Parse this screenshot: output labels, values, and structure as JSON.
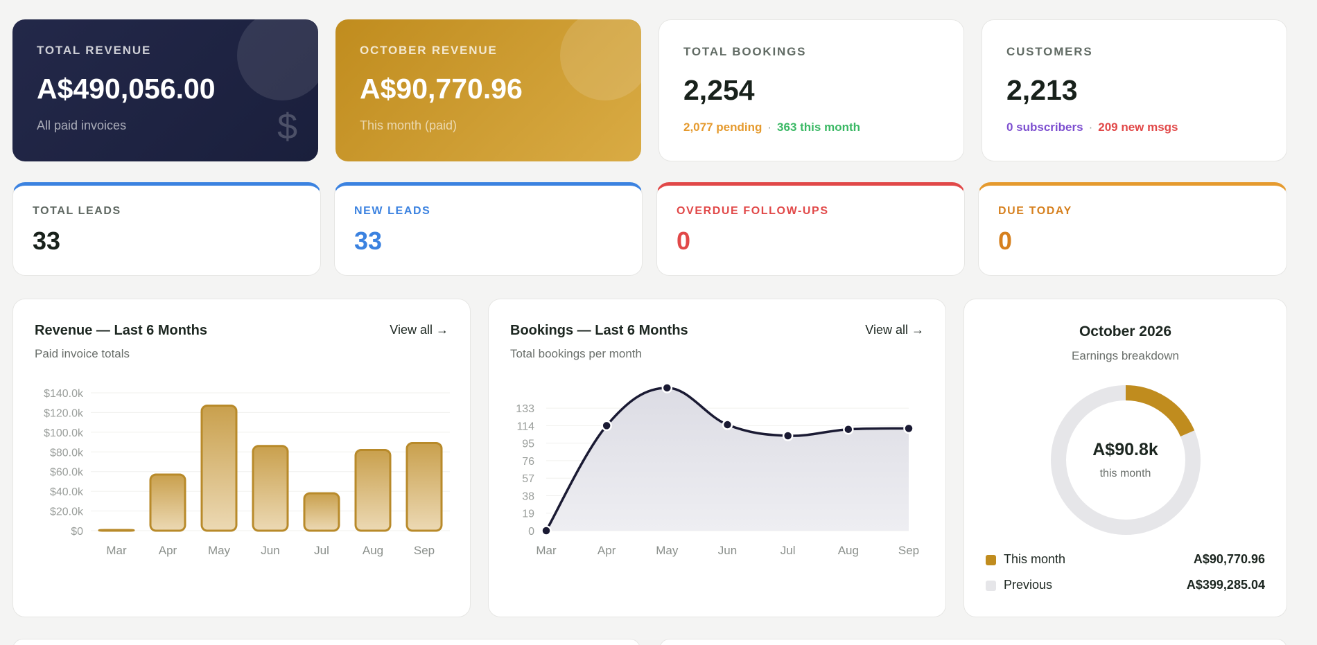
{
  "colors": {
    "navy": "#232849",
    "gold": "#c08c1e",
    "blue": "#3b82e0",
    "red": "#e14848",
    "orange": "#e59a2e",
    "orange_text": "#d6801e",
    "green": "#3ab864",
    "purple": "#7d4fd0",
    "bar_stroke": "#b88a2a",
    "bar_fill_top": "#c9a04d",
    "bar_fill_bottom": "#ecd9b4",
    "line": "#1a1a33",
    "donut_previous": "#e6e6e9"
  },
  "stats": {
    "total_revenue": {
      "label": "TOTAL REVENUE",
      "value": "A$490,056.00",
      "sub": "All paid invoices",
      "icon": "dollar-icon"
    },
    "october_revenue": {
      "label": "OCTOBER REVENUE",
      "value": "A$90,770.96",
      "sub": "This month (paid)"
    },
    "total_bookings": {
      "label": "TOTAL BOOKINGS",
      "value": "2,254",
      "pending": "2,077 pending",
      "this_month": "363 this month"
    },
    "customers": {
      "label": "CUSTOMERS",
      "value": "2,213",
      "subscribers": "0 subscribers",
      "new_msgs": "209 new msgs"
    }
  },
  "separator": "·",
  "leads": {
    "total": {
      "label": "TOTAL LEADS",
      "value": "33"
    },
    "new": {
      "label": "NEW LEADS",
      "value": "33"
    },
    "overdue": {
      "label": "OVERDUE FOLLOW-UPS",
      "value": "0"
    },
    "due_today": {
      "label": "DUE TODAY",
      "value": "0"
    }
  },
  "revenue_chart": {
    "title": "Revenue — Last 6 Months",
    "subtitle": "Paid invoice totals",
    "view_all": "View all →"
  },
  "bookings_chart": {
    "title": "Bookings — Last 6 Months",
    "subtitle": "Total bookings per month",
    "view_all": "View all →"
  },
  "donut": {
    "title": "October 2026",
    "subtitle": "Earnings breakdown",
    "center_value": "A$90.8k",
    "center_label": "this month",
    "legend": [
      {
        "label": "This month",
        "value": "A$90,770.96"
      },
      {
        "label": "Previous",
        "value": "A$399,285.04"
      }
    ]
  },
  "chart_data": [
    {
      "type": "bar",
      "categories": [
        "Mar",
        "Apr",
        "May",
        "Jun",
        "Jul",
        "Aug",
        "Sep"
      ],
      "values": [
        0.4,
        57,
        127,
        86,
        38,
        82,
        89
      ],
      "unit": "k",
      "yticks": [
        "$0",
        "$20.0k",
        "$40.0k",
        "$60.0k",
        "$80.0k",
        "$100.0k",
        "$120.0k",
        "$140.0k"
      ],
      "ylim": [
        0,
        140
      ],
      "grid": true
    },
    {
      "type": "area",
      "categories": [
        "Mar",
        "Apr",
        "May",
        "Jun",
        "Jul",
        "Aug",
        "Sep"
      ],
      "values": [
        0,
        114,
        155,
        115,
        103,
        110,
        111
      ],
      "yticks": [
        "0",
        "19",
        "38",
        "57",
        "76",
        "95",
        "114",
        "133"
      ],
      "ylim": [
        0,
        152
      ],
      "grid": true
    },
    {
      "type": "pie",
      "labels": [
        "This month",
        "Previous"
      ],
      "values": [
        90770.96,
        399285.04
      ]
    }
  ]
}
